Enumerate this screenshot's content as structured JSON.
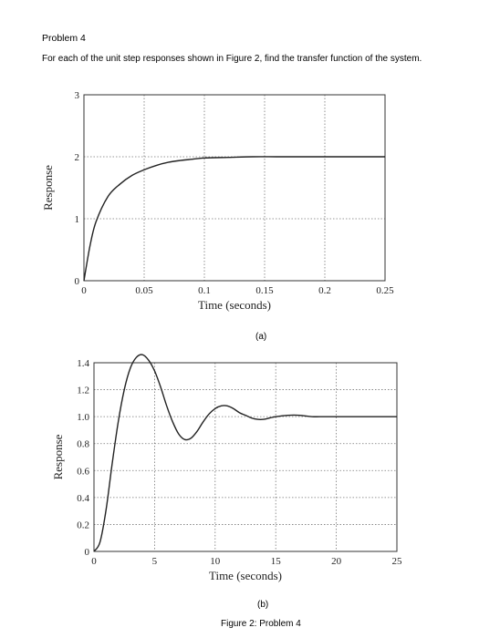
{
  "problem": {
    "title": "Problem 4",
    "text": "For each of the unit step responses shown in Figure 2, find the transfer function of the system."
  },
  "caption": "Figure 2: Problem 4",
  "chart_data": [
    {
      "type": "line",
      "panel_label": "(a)",
      "xlabel": "Time (seconds)",
      "ylabel": "Response",
      "xlim": [
        0,
        0.25
      ],
      "ylim": [
        0,
        3
      ],
      "x_ticks": [
        0,
        0.05,
        0.1,
        0.15,
        0.2,
        0.25
      ],
      "x_tick_labels": [
        "0",
        "0.05",
        "0.1",
        "0.15",
        "0.2",
        "0.25"
      ],
      "y_ticks": [
        0,
        1,
        2,
        3
      ],
      "y_tick_labels": [
        "0",
        "1",
        "2",
        "3"
      ],
      "grid": true,
      "line_color": "#222222",
      "series": [
        {
          "x": [
            0,
            0.005,
            0.01,
            0.02,
            0.03,
            0.04,
            0.05,
            0.06,
            0.07,
            0.08,
            0.09,
            0.1,
            0.12,
            0.14,
            0.16,
            0.18,
            0.2,
            0.22,
            0.25
          ],
          "y": [
            0,
            0.56,
            0.95,
            1.36,
            1.56,
            1.7,
            1.79,
            1.86,
            1.91,
            1.94,
            1.96,
            1.98,
            1.99,
            2.0,
            2.0,
            2.0,
            2.0,
            2.0,
            2.0
          ]
        }
      ]
    },
    {
      "type": "line",
      "panel_label": "(b)",
      "xlabel": "Time (seconds)",
      "ylabel": "Response",
      "xlim": [
        0,
        25
      ],
      "ylim": [
        0,
        1.4
      ],
      "x_ticks": [
        0,
        5,
        10,
        15,
        20,
        25
      ],
      "x_tick_labels": [
        "0",
        "5",
        "10",
        "15",
        "20",
        "25"
      ],
      "y_ticks": [
        0,
        0.2,
        0.4,
        0.6,
        0.8,
        1.0,
        1.2,
        1.4
      ],
      "y_tick_labels": [
        "0",
        "0.2",
        "0.4",
        "0.6",
        "0.8",
        "1.0",
        "1.2",
        "1.4"
      ],
      "grid": true,
      "line_color": "#222222",
      "series": [
        {
          "x": [
            0,
            0.5,
            1,
            1.5,
            2,
            2.5,
            3,
            3.5,
            4,
            4.5,
            5,
            5.5,
            6,
            6.5,
            7,
            7.5,
            8,
            8.5,
            9,
            9.5,
            10,
            10.5,
            11,
            11.5,
            12,
            12.5,
            13,
            13.5,
            14,
            14.5,
            15,
            16,
            17,
            18,
            19,
            20,
            21,
            22,
            23,
            24,
            25
          ],
          "y": [
            0,
            0.07,
            0.31,
            0.65,
            0.96,
            1.2,
            1.36,
            1.44,
            1.46,
            1.42,
            1.34,
            1.22,
            1.08,
            0.96,
            0.87,
            0.83,
            0.84,
            0.89,
            0.96,
            1.02,
            1.06,
            1.08,
            1.08,
            1.06,
            1.03,
            1.01,
            0.99,
            0.98,
            0.98,
            0.99,
            1.0,
            1.01,
            1.01,
            1.0,
            1.0,
            1.0,
            1.0,
            1.0,
            1.0,
            1.0,
            1.0
          ]
        }
      ]
    }
  ]
}
